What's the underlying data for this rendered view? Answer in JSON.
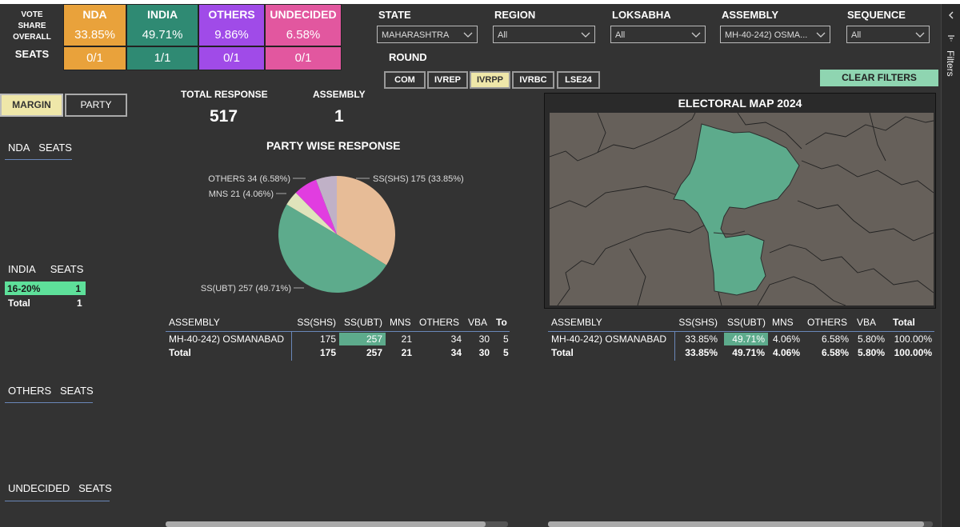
{
  "summary": {
    "label_vote": "VOTE",
    "label_share": "SHARE",
    "label_overall": "OVERALL",
    "label_seats": "SEATS",
    "cards": [
      {
        "name": "NDA",
        "share": "33.85%",
        "seats": "0/1",
        "color": "#e9a23b"
      },
      {
        "name": "INDIA",
        "share": "49.71%",
        "seats": "1/1",
        "color": "#2f8a73"
      },
      {
        "name": "OTHERS",
        "share": "9.86%",
        "seats": "0/1",
        "color": "#a04be8"
      },
      {
        "name": "UNDECIDED",
        "share": "6.58%",
        "seats": "0/1",
        "color": "#e2579f"
      }
    ]
  },
  "filters": {
    "state": {
      "label": "STATE",
      "value": "MAHARASHTRA"
    },
    "region": {
      "label": "REGION",
      "value": "All"
    },
    "loksabha": {
      "label": "LOKSABHA",
      "value": "All"
    },
    "assembly": {
      "label": "ASSEMBLY",
      "value": "MH-40-242) OSMA..."
    },
    "sequence": {
      "label": "SEQUENCE",
      "value": "All"
    },
    "round_label": "ROUND",
    "rounds": [
      "COM",
      "IVREP",
      "IVRPP",
      "IVRBC",
      "LSE24"
    ],
    "active_round": "IVRPP",
    "clear_label": "CLEAR FILTERS",
    "pane_label": "Filters"
  },
  "toggles": {
    "margin": "MARGIN",
    "party": "PARTY"
  },
  "kpis": {
    "total_response_label": "TOTAL RESPONSE",
    "total_response_value": "517",
    "assembly_label": "ASSEMBLY",
    "assembly_value": "1"
  },
  "seat_panels": {
    "nda": {
      "left": "NDA",
      "right": "SEATS"
    },
    "india": {
      "left": "INDIA",
      "right": "SEATS",
      "row_label": "16-20%",
      "row_value": "1",
      "total_label": "Total",
      "total_value": "1"
    },
    "others": {
      "left": "OTHERS",
      "right": "SEATS"
    },
    "undecided": {
      "left": "UNDECIDED",
      "right": "SEATS"
    }
  },
  "chart_data": {
    "type": "pie",
    "title": "PARTY WISE RESPONSE",
    "slices": [
      {
        "label": "SS(SHS)",
        "value": 175,
        "pct": 33.85,
        "text": "SS(SHS) 175 (33.85%)",
        "color": "#e7bc97"
      },
      {
        "label": "SS(UBT)",
        "value": 257,
        "pct": 49.71,
        "text": "SS(UBT) 257 (49.71%)",
        "color": "#5dab8c"
      },
      {
        "label": "MNS",
        "value": 21,
        "pct": 4.06,
        "text": "MNS 21 (4.06%)",
        "color": "#dfe3bb"
      },
      {
        "label": "OTHERS",
        "value": 34,
        "pct": 6.58,
        "text": "OTHERS 34 (6.58%)",
        "color": "#e13de0"
      },
      {
        "label": "VBA",
        "value": 30,
        "pct": 5.8,
        "text": "",
        "color": "#c0b1c7"
      }
    ]
  },
  "map": {
    "title": "ELECTORAL MAP 2024"
  },
  "response_table": {
    "headers": [
      "ASSEMBLY",
      "SS(SHS)",
      "SS(UBT)",
      "MNS",
      "OTHERS",
      "VBA",
      "To"
    ],
    "row": [
      "MH-40-242) OSMANABAD",
      "175",
      "257",
      "21",
      "34",
      "30",
      "5"
    ],
    "total": [
      "Total",
      "175",
      "257",
      "21",
      "34",
      "30",
      "5"
    ]
  },
  "share_table": {
    "headers": [
      "ASSEMBLY",
      "SS(SHS)",
      "SS(UBT)",
      "MNS",
      "OTHERS",
      "VBA",
      "Total"
    ],
    "row": [
      "MH-40-242) OSMANABAD",
      "33.85%",
      "49.71%",
      "4.06%",
      "6.58%",
      "5.80%",
      "100.00%"
    ],
    "total": [
      "Total",
      "33.85%",
      "49.71%",
      "4.06%",
      "6.58%",
      "5.80%",
      "100.00%"
    ]
  }
}
